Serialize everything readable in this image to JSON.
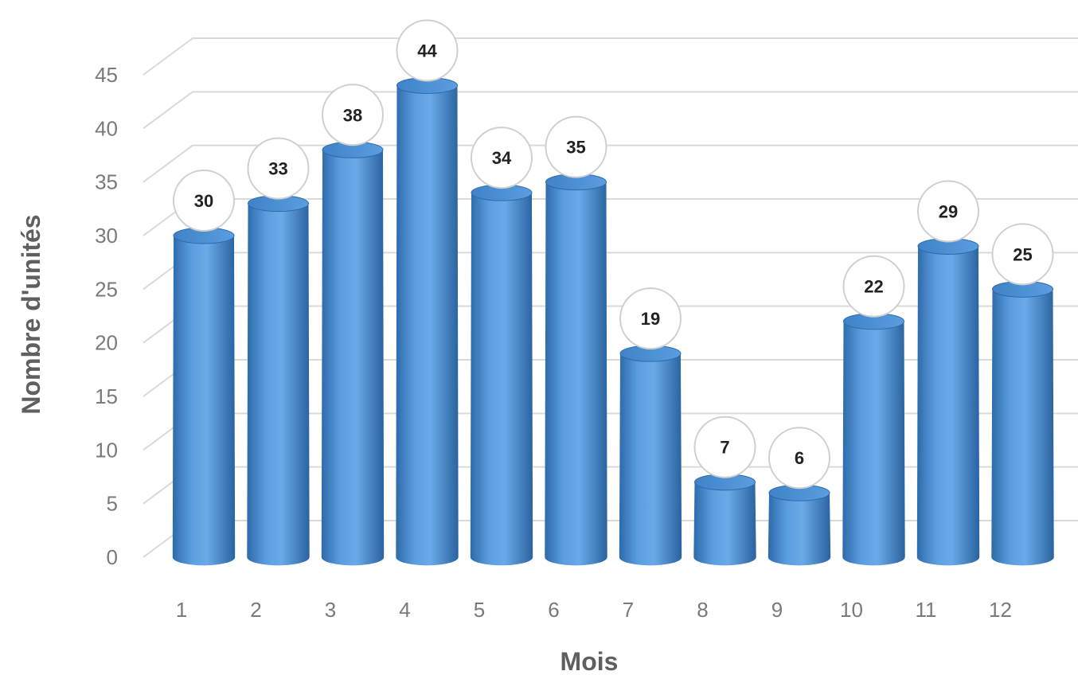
{
  "chart_data": {
    "type": "bar",
    "style": "3d-cylinder",
    "categories": [
      "1",
      "2",
      "3",
      "4",
      "5",
      "6",
      "7",
      "8",
      "9",
      "10",
      "11",
      "12"
    ],
    "series": [
      {
        "values": [
          30,
          33,
          38,
          44,
          34,
          35,
          19,
          7,
          6,
          22,
          29,
          25
        ]
      }
    ],
    "xlabel": "Mois",
    "ylabel": "Nombre d'unités",
    "ylim": [
      0,
      45
    ],
    "yticks": [
      0,
      5,
      10,
      15,
      20,
      25,
      30,
      35,
      40,
      45
    ],
    "grid": true,
    "legend": "none",
    "data_labels": true,
    "colors": {
      "bar": "#4a8fd6",
      "bar_dark": "#2e6aaa",
      "bar_light": "#78b1ea",
      "grid": "#d9d9d9",
      "label_bubble_border": "#cfcfcf"
    }
  }
}
